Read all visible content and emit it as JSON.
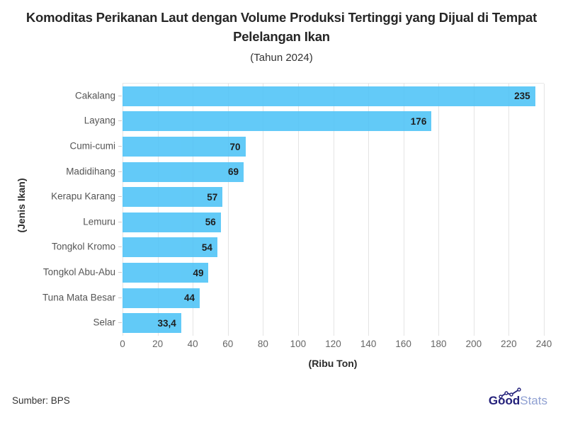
{
  "title": "Komoditas Perikanan Laut dengan Volume Produksi Tertinggi yang Dijual di Tempat Pelelangan Ikan",
  "subtitle": "(Tahun 2024)",
  "source": "Sumber: BPS",
  "logo": {
    "bold_text": "Good",
    "light_text": "Stats",
    "bold_color": "#23207a",
    "light_color": "#8fa0d2"
  },
  "colors": {
    "bar": "#4dc3f7",
    "grid": "#e4e4e4",
    "value_label": "#000000",
    "category_label": "#555555",
    "tick_label": "#666666"
  },
  "chart_data": {
    "type": "bar",
    "orientation": "horizontal",
    "title": "Komoditas Perikanan Laut dengan Volume Produksi Tertinggi yang Dijual di Tempat Pelelangan Ikan",
    "subtitle": "(Tahun 2024)",
    "categories": [
      "Cakalang",
      "Layang",
      "Cumi-cumi",
      "Madidihang",
      "Kerapu Karang",
      "Lemuru",
      "Tongkol Kromo",
      "Tongkol Abu-Abu",
      "Tuna Mata Besar",
      "Selar"
    ],
    "values": [
      235,
      176,
      70,
      69,
      57,
      56,
      54,
      49,
      44,
      33.4
    ],
    "value_labels": [
      "235",
      "176",
      "70",
      "69",
      "57",
      "56",
      "54",
      "49",
      "44",
      "33,4"
    ],
    "xlabel": "(Ribu Ton)",
    "ylabel": "(Jenis Ikan)",
    "xlim": [
      0,
      240
    ],
    "xticks": [
      0,
      20,
      40,
      60,
      80,
      100,
      120,
      140,
      160,
      180,
      200,
      220,
      240
    ],
    "grid": true,
    "legend": false
  }
}
